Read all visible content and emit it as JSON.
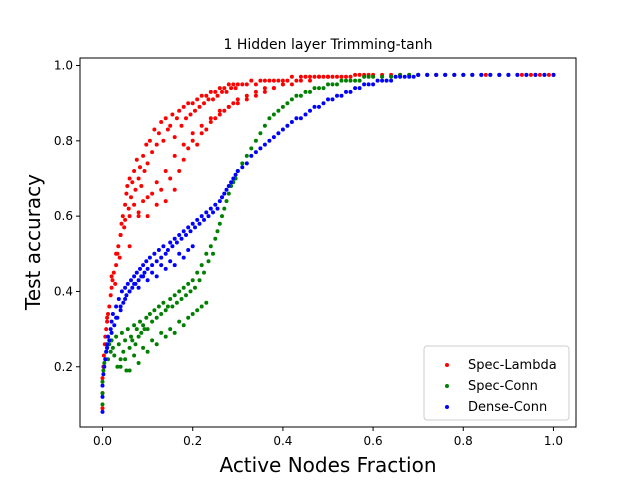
{
  "chart_data": {
    "type": "scatter",
    "title": "1 Hidden layer Trimming-tanh",
    "xlabel": "Active Nodes Fraction",
    "ylabel": "Test accuracy",
    "xlim": [
      -0.05,
      1.05
    ],
    "ylim": [
      0.04,
      1.02
    ],
    "xticks": [
      0.0,
      0.2,
      0.4,
      0.6,
      0.8,
      1.0
    ],
    "xtick_labels": [
      "0.0",
      "0.2",
      "0.4",
      "0.6",
      "0.8",
      "1.0"
    ],
    "yticks": [
      0.2,
      0.4,
      0.6,
      0.8,
      1.0
    ],
    "ytick_labels": [
      "0.2",
      "0.4",
      "0.6",
      "0.8",
      "1.0"
    ],
    "grid": false,
    "legend_position": "lower right",
    "series": [
      {
        "name": "Spec-Lambda",
        "color": "#ff0000",
        "x": [
          0.0,
          0.0,
          0.0,
          0.002,
          0.003,
          0.005,
          0.006,
          0.008,
          0.01,
          0.012,
          0.015,
          0.018,
          0.02,
          0.022,
          0.025,
          0.028,
          0.03,
          0.033,
          0.035,
          0.038,
          0.04,
          0.042,
          0.045,
          0.048,
          0.05,
          0.053,
          0.055,
          0.058,
          0.06,
          0.063,
          0.066,
          0.07,
          0.073,
          0.076,
          0.08,
          0.083,
          0.086,
          0.09,
          0.093,
          0.097,
          0.1,
          0.105,
          0.11,
          0.115,
          0.12,
          0.125,
          0.13,
          0.135,
          0.14,
          0.145,
          0.15,
          0.155,
          0.16,
          0.165,
          0.17,
          0.175,
          0.18,
          0.185,
          0.19,
          0.195,
          0.2,
          0.205,
          0.21,
          0.215,
          0.22,
          0.225,
          0.23,
          0.235,
          0.24,
          0.245,
          0.25,
          0.255,
          0.26,
          0.265,
          0.27,
          0.275,
          0.28,
          0.285,
          0.29,
          0.295,
          0.3,
          0.31,
          0.32,
          0.33,
          0.34,
          0.35,
          0.36,
          0.37,
          0.38,
          0.39,
          0.4,
          0.41,
          0.42,
          0.43,
          0.44,
          0.45,
          0.46,
          0.47,
          0.48,
          0.49,
          0.5,
          0.51,
          0.52,
          0.53,
          0.54,
          0.55,
          0.56,
          0.57,
          0.58,
          0.59,
          0.6,
          0.62,
          0.64,
          0.66,
          0.68,
          0.7,
          0.72,
          0.74,
          0.76,
          0.78,
          0.8,
          0.82,
          0.85,
          0.88,
          0.9,
          0.93,
          0.95,
          0.97,
          0.99,
          1.0,
          0.01,
          0.02,
          0.03,
          0.04,
          0.05,
          0.06,
          0.07,
          0.08,
          0.09,
          0.1,
          0.11,
          0.12,
          0.13,
          0.14,
          0.15,
          0.16,
          0.17,
          0.18,
          0.19,
          0.2,
          0.21,
          0.22,
          0.23,
          0.24,
          0.25,
          0.26,
          0.27,
          0.28,
          0.29,
          0.3,
          0.32,
          0.34,
          0.36,
          0.38,
          0.4,
          0.42,
          0.44,
          0.46,
          0.48,
          0.5,
          0.06,
          0.08,
          0.1,
          0.12,
          0.14,
          0.16,
          0.18,
          0.2,
          0.22,
          0.24,
          0.26,
          0.28,
          0.3,
          0.32,
          0.34,
          0.36,
          0.38,
          0.4
        ],
        "y": [
          0.09,
          0.13,
          0.17,
          0.2,
          0.23,
          0.26,
          0.28,
          0.3,
          0.32,
          0.34,
          0.36,
          0.39,
          0.41,
          0.43,
          0.45,
          0.42,
          0.47,
          0.5,
          0.52,
          0.49,
          0.55,
          0.58,
          0.6,
          0.57,
          0.63,
          0.66,
          0.68,
          0.62,
          0.7,
          0.65,
          0.69,
          0.72,
          0.67,
          0.75,
          0.7,
          0.73,
          0.68,
          0.76,
          0.72,
          0.79,
          0.74,
          0.8,
          0.77,
          0.83,
          0.79,
          0.82,
          0.85,
          0.8,
          0.86,
          0.83,
          0.84,
          0.87,
          0.81,
          0.86,
          0.88,
          0.84,
          0.89,
          0.86,
          0.9,
          0.87,
          0.9,
          0.88,
          0.91,
          0.89,
          0.92,
          0.9,
          0.92,
          0.91,
          0.93,
          0.91,
          0.93,
          0.92,
          0.94,
          0.93,
          0.94,
          0.93,
          0.95,
          0.94,
          0.95,
          0.94,
          0.95,
          0.95,
          0.95,
          0.96,
          0.95,
          0.96,
          0.96,
          0.96,
          0.96,
          0.96,
          0.96,
          0.96,
          0.97,
          0.96,
          0.97,
          0.97,
          0.97,
          0.97,
          0.97,
          0.97,
          0.97,
          0.97,
          0.97,
          0.97,
          0.97,
          0.97,
          0.975,
          0.975,
          0.975,
          0.975,
          0.975,
          0.975,
          0.975,
          0.975,
          0.975,
          0.975,
          0.975,
          0.975,
          0.975,
          0.975,
          0.975,
          0.975,
          0.975,
          0.975,
          0.975,
          0.975,
          0.975,
          0.975,
          0.975,
          0.975,
          0.33,
          0.44,
          0.5,
          0.55,
          0.59,
          0.6,
          0.63,
          0.61,
          0.64,
          0.6,
          0.66,
          0.63,
          0.67,
          0.64,
          0.7,
          0.67,
          0.72,
          0.75,
          0.78,
          0.8,
          0.79,
          0.82,
          0.83,
          0.85,
          0.86,
          0.87,
          0.88,
          0.89,
          0.9,
          0.91,
          0.92,
          0.93,
          0.94,
          0.94,
          0.95,
          0.95,
          0.96,
          0.96,
          0.97,
          0.97,
          0.52,
          0.6,
          0.65,
          0.69,
          0.72,
          0.76,
          0.79,
          0.82,
          0.84,
          0.86,
          0.88,
          0.89,
          0.9,
          0.91,
          0.92,
          0.93,
          0.94,
          0.95
        ]
      },
      {
        "name": "Spec-Conn",
        "color": "#008000",
        "x": [
          0.0,
          0.0,
          0.0,
          0.002,
          0.004,
          0.006,
          0.008,
          0.01,
          0.012,
          0.015,
          0.018,
          0.02,
          0.023,
          0.026,
          0.03,
          0.033,
          0.036,
          0.04,
          0.043,
          0.046,
          0.05,
          0.053,
          0.056,
          0.06,
          0.063,
          0.066,
          0.07,
          0.073,
          0.076,
          0.08,
          0.083,
          0.086,
          0.09,
          0.093,
          0.097,
          0.1,
          0.105,
          0.11,
          0.115,
          0.12,
          0.125,
          0.13,
          0.135,
          0.14,
          0.145,
          0.15,
          0.155,
          0.16,
          0.165,
          0.17,
          0.175,
          0.18,
          0.185,
          0.19,
          0.195,
          0.2,
          0.205,
          0.21,
          0.215,
          0.22,
          0.225,
          0.23,
          0.235,
          0.24,
          0.245,
          0.25,
          0.255,
          0.26,
          0.265,
          0.27,
          0.275,
          0.28,
          0.285,
          0.29,
          0.295,
          0.3,
          0.31,
          0.32,
          0.33,
          0.34,
          0.35,
          0.36,
          0.37,
          0.38,
          0.39,
          0.4,
          0.41,
          0.42,
          0.43,
          0.44,
          0.45,
          0.46,
          0.47,
          0.48,
          0.49,
          0.5,
          0.51,
          0.52,
          0.53,
          0.54,
          0.55,
          0.56,
          0.57,
          0.58,
          0.59,
          0.6,
          0.62,
          0.64,
          0.66,
          0.68,
          0.7,
          0.72,
          0.74,
          0.76,
          0.78,
          0.8,
          0.82,
          0.84,
          0.86,
          0.88,
          0.9,
          0.92,
          0.94,
          0.96,
          0.98,
          1.0,
          0.04,
          0.05,
          0.06,
          0.07,
          0.08,
          0.09,
          0.1,
          0.11,
          0.12,
          0.13,
          0.14,
          0.15,
          0.16,
          0.17,
          0.18,
          0.19,
          0.2,
          0.21,
          0.22,
          0.23
        ],
        "y": [
          0.1,
          0.13,
          0.16,
          0.19,
          0.21,
          0.22,
          0.24,
          0.25,
          0.22,
          0.26,
          0.24,
          0.27,
          0.25,
          0.23,
          0.28,
          0.2,
          0.26,
          0.22,
          0.29,
          0.24,
          0.27,
          0.19,
          0.3,
          0.25,
          0.28,
          0.27,
          0.31,
          0.26,
          0.3,
          0.28,
          0.32,
          0.29,
          0.31,
          0.3,
          0.33,
          0.3,
          0.34,
          0.32,
          0.35,
          0.33,
          0.36,
          0.34,
          0.37,
          0.35,
          0.36,
          0.38,
          0.36,
          0.39,
          0.37,
          0.4,
          0.38,
          0.41,
          0.39,
          0.42,
          0.4,
          0.43,
          0.41,
          0.45,
          0.43,
          0.47,
          0.45,
          0.5,
          0.48,
          0.52,
          0.5,
          0.54,
          0.56,
          0.58,
          0.6,
          0.62,
          0.64,
          0.66,
          0.68,
          0.69,
          0.7,
          0.72,
          0.74,
          0.76,
          0.78,
          0.8,
          0.82,
          0.84,
          0.86,
          0.87,
          0.88,
          0.89,
          0.9,
          0.91,
          0.92,
          0.92,
          0.93,
          0.93,
          0.94,
          0.94,
          0.94,
          0.95,
          0.95,
          0.95,
          0.96,
          0.96,
          0.96,
          0.96,
          0.96,
          0.97,
          0.97,
          0.97,
          0.97,
          0.97,
          0.975,
          0.975,
          0.975,
          0.975,
          0.975,
          0.975,
          0.975,
          0.975,
          0.975,
          0.975,
          0.975,
          0.975,
          0.975,
          0.975,
          0.975,
          0.975,
          0.975,
          0.975,
          0.2,
          0.22,
          0.19,
          0.23,
          0.21,
          0.25,
          0.24,
          0.27,
          0.26,
          0.29,
          0.28,
          0.3,
          0.29,
          0.32,
          0.31,
          0.33,
          0.34,
          0.35,
          0.36,
          0.37
        ]
      },
      {
        "name": "Dense-Conn",
        "color": "#0000ff",
        "x": [
          0.0,
          0.0,
          0.0,
          0.002,
          0.004,
          0.006,
          0.008,
          0.01,
          0.012,
          0.015,
          0.018,
          0.02,
          0.023,
          0.026,
          0.03,
          0.033,
          0.036,
          0.04,
          0.043,
          0.046,
          0.05,
          0.053,
          0.056,
          0.06,
          0.063,
          0.066,
          0.07,
          0.073,
          0.076,
          0.08,
          0.083,
          0.086,
          0.09,
          0.093,
          0.097,
          0.1,
          0.105,
          0.11,
          0.115,
          0.12,
          0.125,
          0.13,
          0.135,
          0.14,
          0.145,
          0.15,
          0.155,
          0.16,
          0.165,
          0.17,
          0.175,
          0.18,
          0.185,
          0.19,
          0.195,
          0.2,
          0.205,
          0.21,
          0.215,
          0.22,
          0.225,
          0.23,
          0.235,
          0.24,
          0.245,
          0.25,
          0.255,
          0.26,
          0.265,
          0.27,
          0.275,
          0.28,
          0.285,
          0.29,
          0.295,
          0.3,
          0.31,
          0.32,
          0.33,
          0.34,
          0.35,
          0.36,
          0.37,
          0.38,
          0.39,
          0.4,
          0.41,
          0.42,
          0.43,
          0.44,
          0.45,
          0.46,
          0.47,
          0.48,
          0.49,
          0.5,
          0.51,
          0.52,
          0.53,
          0.54,
          0.55,
          0.56,
          0.57,
          0.58,
          0.59,
          0.6,
          0.61,
          0.62,
          0.63,
          0.64,
          0.65,
          0.66,
          0.67,
          0.68,
          0.69,
          0.7,
          0.72,
          0.74,
          0.76,
          0.78,
          0.8,
          0.82,
          0.84,
          0.86,
          0.88,
          0.9,
          0.92,
          0.94,
          0.96,
          0.98,
          1.0,
          0.01,
          0.02,
          0.03,
          0.04,
          0.05,
          0.06,
          0.07,
          0.08,
          0.09,
          0.1,
          0.11,
          0.12,
          0.13,
          0.14,
          0.15,
          0.16,
          0.17,
          0.18,
          0.19,
          0.2
        ],
        "y": [
          0.08,
          0.12,
          0.15,
          0.18,
          0.2,
          0.22,
          0.24,
          0.26,
          0.28,
          0.27,
          0.3,
          0.32,
          0.34,
          0.31,
          0.36,
          0.33,
          0.38,
          0.35,
          0.4,
          0.37,
          0.41,
          0.39,
          0.42,
          0.4,
          0.43,
          0.41,
          0.44,
          0.42,
          0.45,
          0.43,
          0.46,
          0.44,
          0.47,
          0.45,
          0.48,
          0.46,
          0.49,
          0.47,
          0.5,
          0.48,
          0.51,
          0.49,
          0.52,
          0.5,
          0.51,
          0.53,
          0.52,
          0.54,
          0.53,
          0.55,
          0.54,
          0.56,
          0.55,
          0.57,
          0.56,
          0.58,
          0.57,
          0.59,
          0.58,
          0.6,
          0.59,
          0.61,
          0.6,
          0.62,
          0.61,
          0.63,
          0.62,
          0.64,
          0.65,
          0.66,
          0.67,
          0.68,
          0.69,
          0.7,
          0.71,
          0.72,
          0.73,
          0.74,
          0.76,
          0.77,
          0.78,
          0.79,
          0.8,
          0.81,
          0.82,
          0.83,
          0.84,
          0.85,
          0.86,
          0.86,
          0.87,
          0.88,
          0.89,
          0.89,
          0.9,
          0.91,
          0.91,
          0.92,
          0.92,
          0.93,
          0.93,
          0.94,
          0.94,
          0.95,
          0.95,
          0.95,
          0.96,
          0.96,
          0.96,
          0.96,
          0.97,
          0.97,
          0.97,
          0.97,
          0.97,
          0.975,
          0.975,
          0.975,
          0.975,
          0.975,
          0.975,
          0.975,
          0.975,
          0.975,
          0.975,
          0.975,
          0.975,
          0.975,
          0.975,
          0.975,
          0.975,
          0.25,
          0.29,
          0.33,
          0.36,
          0.38,
          0.4,
          0.42,
          0.41,
          0.44,
          0.43,
          0.45,
          0.44,
          0.47,
          0.46,
          0.48,
          0.47,
          0.5,
          0.49,
          0.51,
          0.52
        ]
      }
    ]
  }
}
